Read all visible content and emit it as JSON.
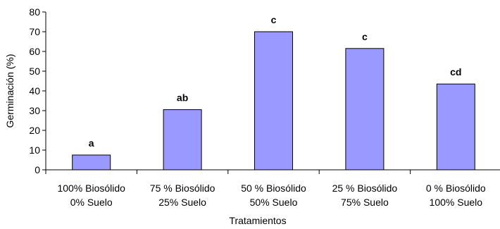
{
  "chart_data": {
    "type": "bar",
    "title": "",
    "xlabel": "Tratamientos",
    "ylabel": "Germinación (%)",
    "ylim": [
      0,
      80
    ],
    "yticks": [
      0,
      10,
      20,
      30,
      40,
      50,
      60,
      70,
      80
    ],
    "grid": false,
    "categories": [
      [
        "100% Biosólido",
        "0% Suelo"
      ],
      [
        "75 % Biosólido",
        "25% Suelo"
      ],
      [
        "50 % Biosólido",
        "50% Suelo"
      ],
      [
        "25 % Biosólido",
        "75% Suelo"
      ],
      [
        "0 % Biosólido",
        "100% Suelo"
      ]
    ],
    "values": [
      7.5,
      30.5,
      70,
      61.5,
      43.5
    ],
    "annotations": [
      "a",
      "ab",
      "c",
      "c",
      "cd"
    ],
    "colors": {
      "bar_fill": "#9999ff",
      "bar_stroke": "#000000",
      "axis": "#000000"
    }
  }
}
